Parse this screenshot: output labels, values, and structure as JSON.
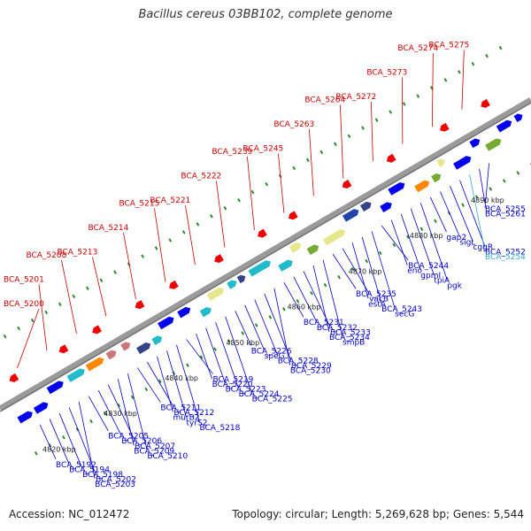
{
  "title": "Bacillus cereus 03BB102, complete genome",
  "footer": {
    "accession": "Accession: NC_012472",
    "summary": "Topology: circular; Length: 5,269,628 bp; Genes: 5,544"
  },
  "colors": {
    "upper_label": "#cc0000",
    "lower_label": "#0000cc",
    "highlight_label": "#33aacc",
    "backbone": "#9a9a9a",
    "forward_gene": "#0000ee",
    "reverse_gene": "#ee0000",
    "rna_gene": "#e0207a",
    "tick": "#2a8a2a"
  },
  "kbp_labels": [
    "4820 kbp",
    "4830 kbp",
    "4840 kbp",
    "4850 kbp",
    "4860 kbp",
    "4870 kbp",
    "4880 kbp",
    "4890 kbp"
  ],
  "upper_labels": [
    "BCA_5200",
    "BCA_5201",
    "BCA_5208",
    "BCA_5213",
    "BCA_5214",
    "BCA_5215",
    "BCA_5221",
    "BCA_5222",
    "BCA_5239",
    "BCA_5245",
    "BCA_5263",
    "BCA_5264",
    "BCA_5272",
    "BCA_5273",
    "BCA_5274",
    "BCA_5275"
  ],
  "lower_labels": [
    "BCA_5192",
    "BCA_5194",
    "BCA_5198",
    "BCA_5202",
    "BCA_5203",
    "BCA_5205",
    "BCA_5206",
    "BCA_5207",
    "BCA_5209",
    "BCA_5210",
    "BCA_5211",
    "BCA_5212",
    "murB2",
    "tyrS2",
    "BCA_5218",
    "BCA_5219",
    "BCA_5220",
    "BCA_5223",
    "BCA_5224",
    "BCA_5225",
    "BCA_5226",
    "speG",
    "BCA_5228",
    "BCA_5229",
    "BCA_5230",
    "BCA_5231",
    "BCA_5232",
    "BCA_5233",
    "BCA_5234",
    "smpB",
    "BCA_5235",
    "vacB",
    "estA",
    "BCA_5243",
    "secG",
    "BCA_5244",
    "eno",
    "gpmI",
    "tpiA",
    "pgk",
    "gap2",
    "sigL",
    "cggR",
    "BCA_5252",
    "BCA_5254",
    "BCA_5255",
    "BCA_5261"
  ],
  "highlighted_label": "BCA_5254"
}
